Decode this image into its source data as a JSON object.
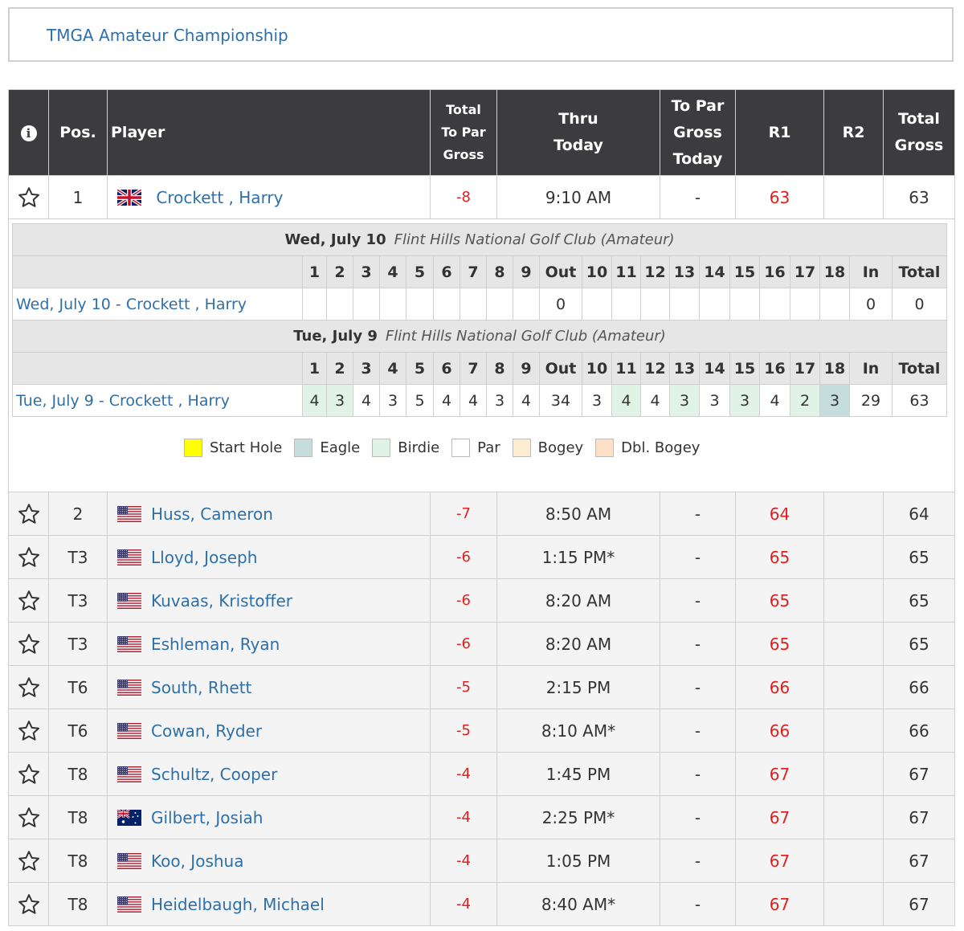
{
  "tournament": {
    "title": "TMGA Amateur Championship"
  },
  "columns": {
    "info": "i",
    "pos": "Pos.",
    "player": "Player",
    "total_to_par_1": "Total",
    "total_to_par_2": "To Par",
    "total_to_par_3": "Gross",
    "thru_1": "Thru",
    "thru_2": "Today",
    "to_par_today_1": "To Par",
    "to_par_today_2": "Gross",
    "to_par_today_3": "Today",
    "r1": "R1",
    "r2": "R2",
    "total_gross_1": "Total",
    "total_gross_2": "Gross"
  },
  "leader": {
    "pos": "1",
    "flag": "gb",
    "name": "Crockett , Harry",
    "to_par": "-8",
    "thru": "9:10 AM",
    "today": "-",
    "r1": "63",
    "r2": "",
    "total": "63"
  },
  "scorecard": {
    "holes": [
      "1",
      "2",
      "3",
      "4",
      "5",
      "6",
      "7",
      "8",
      "9",
      "Out",
      "10",
      "11",
      "12",
      "13",
      "14",
      "15",
      "16",
      "17",
      "18",
      "In",
      "Total"
    ],
    "rounds": [
      {
        "date": "Wed, July 10",
        "course": "Flint Hills National Golf Club (Amateur)",
        "label": "Wed, July 10 - Crockett , Harry",
        "scores": [
          "",
          "",
          "",
          "",
          "",
          "",
          "",
          "",
          "",
          "0",
          "",
          "",
          "",
          "",
          "",
          "",
          "",
          "",
          "",
          "0",
          "0"
        ],
        "types": [
          "",
          "",
          "",
          "",
          "",
          "",
          "",
          "",
          "",
          "",
          "",
          "",
          "",
          "",
          "",
          "",
          "",
          "",
          "",
          "",
          ""
        ]
      },
      {
        "date": "Tue, July 9",
        "course": "Flint Hills National Golf Club (Amateur)",
        "label": "Tue, July 9 - Crockett , Harry",
        "scores": [
          "4",
          "3",
          "4",
          "3",
          "5",
          "4",
          "4",
          "3",
          "4",
          "34",
          "3",
          "4",
          "4",
          "3",
          "3",
          "3",
          "4",
          "2",
          "3",
          "29",
          "63"
        ],
        "types": [
          "birdie",
          "birdie",
          "",
          "",
          "",
          "",
          "",
          "",
          "",
          "",
          "",
          "birdie",
          "",
          "birdie",
          "",
          "birdie",
          "",
          "birdie",
          "eagle",
          "",
          ""
        ]
      }
    ],
    "legend": [
      {
        "label": "Start Hole",
        "color": "#ffff00"
      },
      {
        "label": "Eagle",
        "color": "#c5dedd"
      },
      {
        "label": "Birdie",
        "color": "#e1f3e6"
      },
      {
        "label": "Par",
        "color": "#ffffff"
      },
      {
        "label": "Bogey",
        "color": "#fdedcf"
      },
      {
        "label": "Dbl. Bogey",
        "color": "#fde0c5"
      }
    ]
  },
  "players": [
    {
      "pos": "2",
      "flag": "us",
      "name": "Huss, Cameron",
      "to_par": "-7",
      "thru": "8:50 AM",
      "today": "-",
      "r1": "64",
      "r2": "",
      "total": "64"
    },
    {
      "pos": "T3",
      "flag": "us",
      "name": "Lloyd, Joseph",
      "to_par": "-6",
      "thru": "1:15 PM*",
      "today": "-",
      "r1": "65",
      "r2": "",
      "total": "65"
    },
    {
      "pos": "T3",
      "flag": "us",
      "name": "Kuvaas, Kristoffer",
      "to_par": "-6",
      "thru": "8:20 AM",
      "today": "-",
      "r1": "65",
      "r2": "",
      "total": "65"
    },
    {
      "pos": "T3",
      "flag": "us",
      "name": "Eshleman, Ryan",
      "to_par": "-6",
      "thru": "8:20 AM",
      "today": "-",
      "r1": "65",
      "r2": "",
      "total": "65"
    },
    {
      "pos": "T6",
      "flag": "us",
      "name": "South, Rhett",
      "to_par": "-5",
      "thru": "2:15 PM",
      "today": "-",
      "r1": "66",
      "r2": "",
      "total": "66"
    },
    {
      "pos": "T6",
      "flag": "us",
      "name": "Cowan, Ryder",
      "to_par": "-5",
      "thru": "8:10 AM*",
      "today": "-",
      "r1": "66",
      "r2": "",
      "total": "66"
    },
    {
      "pos": "T8",
      "flag": "us",
      "name": "Schultz, Cooper",
      "to_par": "-4",
      "thru": "1:45 PM",
      "today": "-",
      "r1": "67",
      "r2": "",
      "total": "67"
    },
    {
      "pos": "T8",
      "flag": "au",
      "name": "Gilbert, Josiah",
      "to_par": "-4",
      "thru": "2:25 PM*",
      "today": "-",
      "r1": "67",
      "r2": "",
      "total": "67"
    },
    {
      "pos": "T8",
      "flag": "us",
      "name": "Koo, Joshua",
      "to_par": "-4",
      "thru": "1:05 PM",
      "today": "-",
      "r1": "67",
      "r2": "",
      "total": "67"
    },
    {
      "pos": "T8",
      "flag": "us",
      "name": "Heidelbaugh, Michael",
      "to_par": "-4",
      "thru": "8:40 AM*",
      "today": "-",
      "r1": "67",
      "r2": "",
      "total": "67"
    }
  ]
}
